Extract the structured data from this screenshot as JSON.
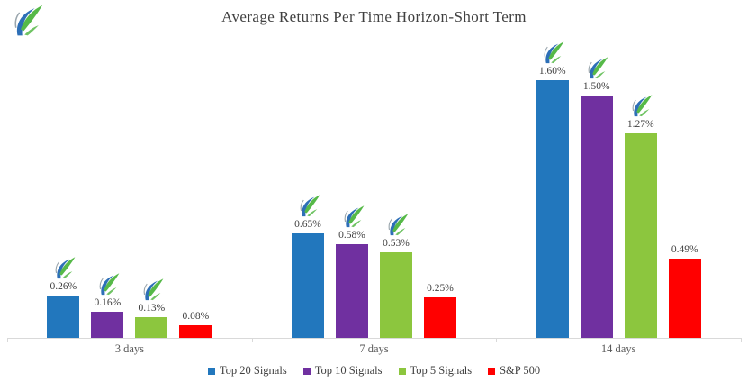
{
  "chart_data": {
    "type": "bar",
    "title": "Average Returns Per Time Horizon-Short Term",
    "categories": [
      "3 days",
      "7 days",
      "14 days"
    ],
    "series": [
      {
        "name": "Top 20 Signals",
        "color": "#2277BD",
        "values": [
          0.26,
          0.65,
          1.6
        ],
        "labels": [
          "0.26%",
          "0.65%",
          "1.60%"
        ],
        "logo_above_bars": true
      },
      {
        "name": "Top 10 Signals",
        "color": "#7030A0",
        "values": [
          0.16,
          0.58,
          1.5
        ],
        "labels": [
          "0.16%",
          "0.58%",
          "1.50%"
        ],
        "logo_above_bars": true
      },
      {
        "name": "Top 5 Signals",
        "color": "#8CC63E",
        "values": [
          0.13,
          0.53,
          1.27
        ],
        "labels": [
          "0.13%",
          "0.53%",
          "1.27%"
        ],
        "logo_above_bars": true
      },
      {
        "name": "S&P 500",
        "color": "#FF0000",
        "values": [
          0.08,
          0.25,
          0.49
        ],
        "labels": [
          "0.08%",
          "0.25%",
          "0.49%"
        ],
        "logo_above_bars": false
      }
    ],
    "xlabel": "",
    "ylabel": "",
    "ylim": [
      0,
      1.8
    ],
    "grid": false,
    "data_labels": true,
    "legend_position": "bottom"
  },
  "logo": {
    "name": "brand-swoosh-logo",
    "green": "#56B948",
    "blue": "#2D6FB7",
    "gray": "#9AA6AD"
  },
  "style": {
    "axis_color": "#D9D9D9",
    "title_color": "#404040",
    "label_color": "#404040",
    "category_color": "#595959"
  }
}
